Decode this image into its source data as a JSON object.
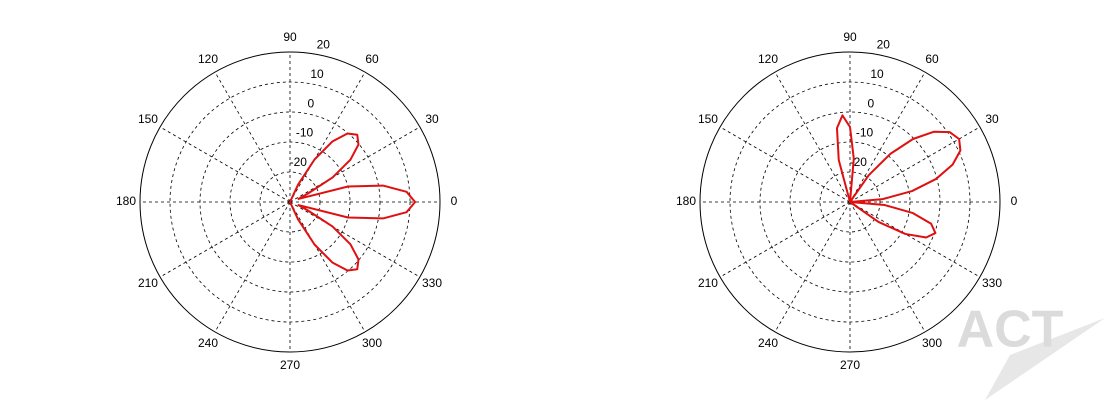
{
  "chart_data": [
    {
      "type": "polar",
      "rlim": [
        -30,
        20
      ],
      "rticks": [
        -20,
        -10,
        0,
        10,
        20
      ],
      "angle_ticks": [
        0,
        30,
        60,
        90,
        120,
        150,
        180,
        210,
        240,
        270,
        300,
        330
      ],
      "theta": [
        0,
        5,
        10,
        15,
        20,
        25,
        30,
        35,
        40,
        45,
        50,
        55,
        60,
        65,
        70,
        75,
        80,
        85,
        90,
        95,
        100,
        105,
        110,
        115,
        120,
        125,
        130,
        135,
        140,
        145,
        150,
        155,
        160,
        165,
        170,
        175,
        180,
        185,
        190,
        195,
        200,
        205,
        210,
        215,
        220,
        225,
        230,
        235,
        240,
        245,
        250,
        255,
        260,
        265,
        270,
        275,
        280,
        285,
        290,
        295,
        300,
        305,
        310,
        315,
        320,
        325,
        330,
        335,
        340,
        345,
        350,
        355
      ],
      "series": [
        {
          "color": "#e01010",
          "values": [
            11.7,
            9.0,
            1.5,
            -10,
            -27,
            -23.6,
            -13.6,
            -5.4,
            -0.2,
            1.7,
            -0.2,
            -5.4,
            -13.6,
            -23.6,
            -30,
            -30,
            -30,
            -30,
            -30,
            -30,
            -30,
            -30,
            -30,
            -30,
            -30,
            -30,
            -30,
            -30,
            -30,
            -30,
            -30,
            -30,
            -30,
            -30,
            -30,
            -30,
            -30,
            -30,
            -30,
            -30,
            -30,
            -30,
            -30,
            -30,
            -30,
            -30,
            -30,
            -30,
            -30,
            -30,
            -30,
            -30,
            -30,
            -30,
            -30,
            -30,
            -30,
            -30,
            -30,
            -23.6,
            -13.6,
            -5.4,
            -0.2,
            1.7,
            -0.2,
            -5.4,
            -13.6,
            -23.6,
            -27,
            -10,
            1.5,
            9.0
          ]
        }
      ]
    },
    {
      "type": "polar",
      "rlim": [
        -30,
        20
      ],
      "rticks": [
        -20,
        -10,
        0,
        10,
        20
      ],
      "angle_ticks": [
        0,
        30,
        60,
        90,
        120,
        150,
        180,
        210,
        240,
        270,
        300,
        330
      ],
      "theta": [
        0,
        5,
        10,
        15,
        20,
        25,
        30,
        35,
        40,
        45,
        50,
        55,
        60,
        65,
        70,
        75,
        80,
        85,
        90,
        95,
        100,
        105,
        110,
        115,
        120,
        125,
        130,
        135,
        140,
        145,
        150,
        155,
        160,
        165,
        170,
        175,
        180,
        185,
        190,
        195,
        200,
        205,
        210,
        215,
        220,
        225,
        230,
        235,
        240,
        245,
        250,
        255,
        260,
        265,
        270,
        275,
        280,
        285,
        290,
        295,
        300,
        305,
        310,
        315,
        320,
        325,
        330,
        335,
        340,
        345,
        350,
        355
      ],
      "series": [
        {
          "color": "#e01010",
          "values": [
            -30,
            -19.1,
            -9,
            -0.3,
            6.4,
            10.6,
            12,
            10.6,
            6.4,
            -0.3,
            -9,
            -19.1,
            -30,
            -30,
            -30,
            -30,
            -30,
            -15.5,
            -5,
            -1,
            -5,
            -15.5,
            -30,
            -30,
            -30,
            -30,
            -30,
            -30,
            -30,
            -30,
            -30,
            -30,
            -30,
            -30,
            -30,
            -30,
            -30,
            -30,
            -30,
            -30,
            -30,
            -30,
            -30,
            -30,
            -30,
            -30,
            -30,
            -30,
            -30,
            -30,
            -30,
            -30,
            -30,
            -30,
            -30,
            -30,
            -30,
            -30,
            -30,
            -30,
            -30,
            -30,
            -30,
            -30,
            -30,
            -18.4,
            -8.7,
            -2,
            0.3,
            -2,
            -8.7,
            -18.4
          ]
        }
      ]
    }
  ],
  "watermark": "ACT"
}
